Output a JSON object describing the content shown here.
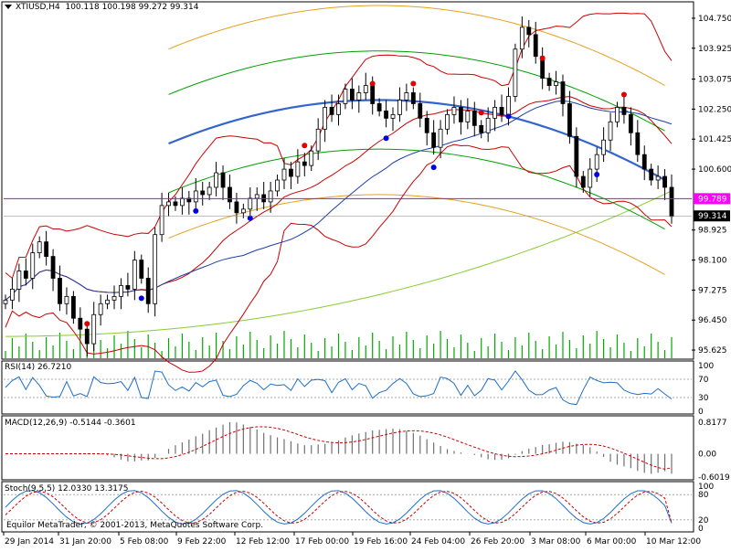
{
  "colors": {
    "background": "#ffffff",
    "axis": "#000000",
    "grid": "#c8c8c8",
    "bullish_candle": "#000000",
    "bearish_candle": "#000000",
    "bollinger": "#cc0000",
    "ma": "#1c3fa8",
    "regression": "#3366cc",
    "std_channel_inner": "#00a000",
    "std_channel_outer": "#e6a020",
    "envelope_green": "#88cc33",
    "volume": "#00aa00",
    "pink_line": "#cc00cc",
    "fractal_up": "#e00000",
    "fractal_down": "#0000e0",
    "rsi": "#1e6fc8",
    "macd_hist": "#707070",
    "macd_signal": "#cc0000",
    "stoch_main": "#1e6fc8",
    "stoch_signal": "#cc0000",
    "price_label_bg": "#000000",
    "pink_label_bg": "#ff00ff"
  },
  "main": {
    "header": {
      "symbol": "XTIUSD,H4",
      "ohlc": "100.118 100.198 99.272 99.314"
    },
    "menu_icon": "dropdown-triangle-icon",
    "price_ticks": [
      "104.750",
      "103.925",
      "103.075",
      "102.250",
      "101.425",
      "100.600",
      "99.789",
      "98.925",
      "98.100",
      "97.275",
      "96.450",
      "95.625"
    ],
    "current_price": "99.314",
    "horizontal_line_price": "99.789"
  },
  "rsi": {
    "label": "RSI(14) 26.7210",
    "levels": [
      "100",
      "70",
      "30",
      "0"
    ]
  },
  "macd": {
    "label": "MACD(12,26,9) -0.5144 -0.3601",
    "levels": [
      "0.8177",
      "0.00",
      "-0.6019"
    ]
  },
  "stoch": {
    "label": "Stoch(9,5,5) 12.0330 13.3175",
    "levels": [
      "100",
      "80",
      "20",
      "0"
    ]
  },
  "x_axis": {
    "labels": [
      "29 Jan 2014",
      "31 Jan 20:00",
      "5 Feb 08:00",
      "9 Feb 22:00",
      "12 Feb 12:00",
      "17 Feb 00:00",
      "19 Feb 16:00",
      "24 Feb 04:00",
      "26 Feb 20:00",
      "3 Mar 08:00",
      "6 Mar 00:00",
      "10 Mar 12:00"
    ]
  },
  "footer": {
    "copyright": "Equilor MetaTrader, © 2001-2013, MetaQuotes Software Corp."
  },
  "chart_data": {
    "type": "candlestick",
    "title": "XTIUSD,H4",
    "ylim": [
      95.4,
      105.1
    ],
    "x_categories": [
      "29 Jan 2014",
      "31 Jan 20:00",
      "5 Feb 08:00",
      "9 Feb 22:00",
      "12 Feb 12:00",
      "17 Feb 00:00",
      "19 Feb 16:00",
      "24 Feb 04:00",
      "26 Feb 20:00",
      "3 Mar 08:00",
      "6 Mar 00:00",
      "10 Mar 12:00"
    ],
    "close_series": [
      97.0,
      97.3,
      97.8,
      97.6,
      98.3,
      98.6,
      98.2,
      97.6,
      96.9,
      97.1,
      96.5,
      96.2,
      95.8,
      96.6,
      96.9,
      97.0,
      97.1,
      97.4,
      97.3,
      98.1,
      97.6,
      96.9,
      98.8,
      99.6,
      99.7,
      99.6,
      99.8,
      99.7,
      100.0,
      99.9,
      100.1,
      100.5,
      100.1,
      99.7,
      99.4,
      99.5,
      99.8,
      99.9,
      99.7,
      100.0,
      100.3,
      100.6,
      100.4,
      100.8,
      100.7,
      101.1,
      101.7,
      102.3,
      102.1,
      102.4,
      102.8,
      102.5,
      102.7,
      102.9,
      102.4,
      102.2,
      102.0,
      102.1,
      102.5,
      102.7,
      102.4,
      102.0,
      101.6,
      101.2,
      101.7,
      102.1,
      102.3,
      101.9,
      102.2,
      101.8,
      101.6,
      102.0,
      102.3,
      102.1,
      102.6,
      103.9,
      104.5,
      104.3,
      103.7,
      103.1,
      102.9,
      103.0,
      102.4,
      101.5,
      100.4,
      100.1,
      100.6,
      101.0,
      101.4,
      101.9,
      102.3,
      102.1,
      101.6,
      101.0,
      100.6,
      100.3,
      100.4,
      100.1,
      99.3
    ],
    "rsi_value": 26.721,
    "macd": {
      "main": -0.5144,
      "signal": -0.3601
    },
    "stoch": {
      "main": 12.033,
      "signal": 13.3175
    }
  }
}
